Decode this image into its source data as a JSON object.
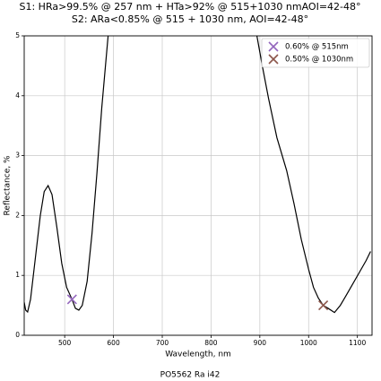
{
  "chart_data": {
    "type": "line",
    "title": "S1: HRa>99.5% @ 257 nm + HTa>92% @ 515+1030 nmAOI=42-48°",
    "subtitle": "S2: ARa<0.85% @ 515 + 1030 nm, AOI=42-48°",
    "xlabel": "Wavelength, nm",
    "ylabel": "Reflectance, %",
    "footnote": "PO5562 Ra i42",
    "x": [
      417,
      420,
      424,
      430,
      440,
      450,
      458,
      466,
      474,
      484,
      494,
      504,
      515,
      522,
      529,
      536,
      546,
      556,
      566,
      576,
      589,
      740,
      894,
      905,
      918,
      935,
      955,
      970,
      985,
      1000,
      1010,
      1020,
      1030,
      1040,
      1053,
      1065,
      1078,
      1090,
      1104,
      1118,
      1127
    ],
    "series": [
      {
        "color": "#000000",
        "values": [
          0.55,
          0.42,
          0.39,
          0.6,
          1.3,
          2.0,
          2.4,
          2.5,
          2.35,
          1.8,
          1.2,
          0.8,
          0.6,
          0.45,
          0.42,
          0.5,
          0.9,
          1.7,
          2.7,
          3.8,
          5.0,
          null,
          5.0,
          4.5,
          3.95,
          3.3,
          2.75,
          2.2,
          1.6,
          1.1,
          0.8,
          0.62,
          0.5,
          0.45,
          0.38,
          0.5,
          0.68,
          0.85,
          1.05,
          1.25,
          1.4
        ]
      }
    ],
    "markers": [
      {
        "name": "0.60% @ 515nm",
        "color": "#9467bd",
        "x": 515,
        "y": 0.6
      },
      {
        "name": "0.50% @ 1030nm",
        "color": "#8c564b",
        "x": 1030,
        "y": 0.5
      }
    ],
    "xlim": [
      417,
      1130
    ],
    "ylim": [
      0,
      5
    ],
    "xticks": [
      500,
      600,
      700,
      800,
      900,
      1000,
      1100
    ],
    "yticks": [
      0,
      1,
      2,
      3,
      4,
      5
    ],
    "grid": true,
    "legend": "upper right"
  }
}
